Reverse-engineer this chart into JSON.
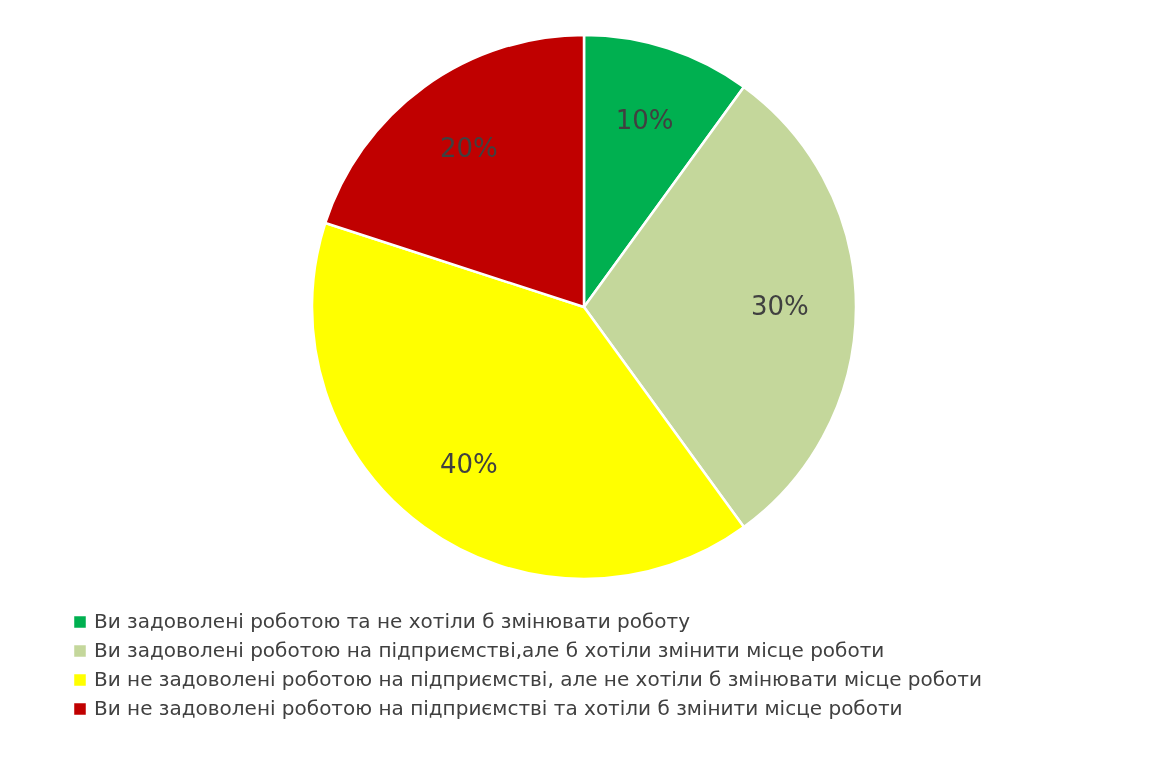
{
  "chart_data": {
    "type": "pie",
    "categories": [
      "Ви задоволені роботою та не хотіли б змінювати роботу",
      "Ви задоволені роботою на підприємстві,але б хотіли змінити місце роботи",
      "Ви не задоволені роботою на підприємстві, але не хотіли б змінювати місце роботи",
      "Ви не задоволені роботою на підприємстві та хотіли б змінити місце роботи"
    ],
    "values": [
      10,
      30,
      40,
      20
    ],
    "colors": [
      "#00b050",
      "#c4d79b",
      "#ffff00",
      "#c00000"
    ],
    "value_labels": [
      "10%",
      "30%",
      "40%",
      "20%"
    ],
    "legend": "bottom"
  }
}
